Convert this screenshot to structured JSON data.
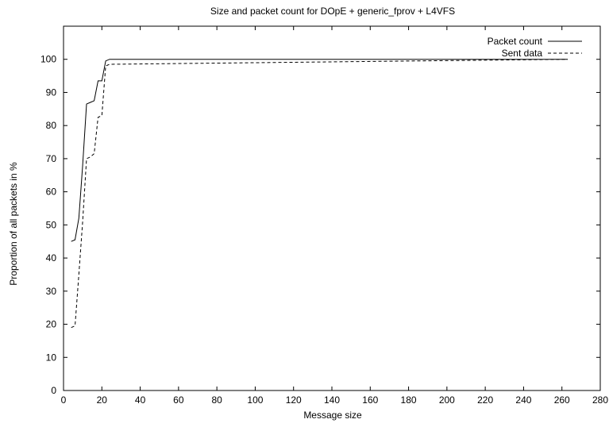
{
  "chart_data": {
    "type": "line",
    "title": "Size and packet count for DOpE + generic_fprov + L4VFS",
    "xlabel": "Message size",
    "ylabel": "Proportion of all packets in %",
    "xlim": [
      0,
      280
    ],
    "ylim": [
      0,
      110
    ],
    "xticks": [
      "0",
      "20",
      "40",
      "60",
      "80",
      "100",
      "120",
      "140",
      "160",
      "180",
      "200",
      "220",
      "240",
      "260",
      "280"
    ],
    "yticks": [
      "0",
      "10",
      "20",
      "30",
      "40",
      "50",
      "60",
      "70",
      "80",
      "90",
      "100"
    ],
    "grid": false,
    "legend_position": "top-right",
    "series": [
      {
        "name": "Packet count",
        "style": "solid",
        "x": [
          4,
          6,
          8,
          10,
          12,
          14,
          16,
          18,
          20,
          22,
          24,
          263
        ],
        "y": [
          45,
          45.5,
          52,
          68,
          86.5,
          87,
          87.5,
          93.5,
          93.5,
          99.5,
          100,
          100
        ]
      },
      {
        "name": "Sent data",
        "style": "dashed",
        "x": [
          4,
          6,
          8,
          10,
          12,
          14,
          16,
          18,
          20,
          22,
          24,
          263
        ],
        "y": [
          19,
          19.5,
          35,
          51,
          70,
          70.5,
          71.5,
          82.5,
          83,
          98,
          98.5,
          100
        ]
      }
    ],
    "colors": {
      "line": "#000000",
      "axis": "#000000",
      "background": "#ffffff"
    }
  }
}
